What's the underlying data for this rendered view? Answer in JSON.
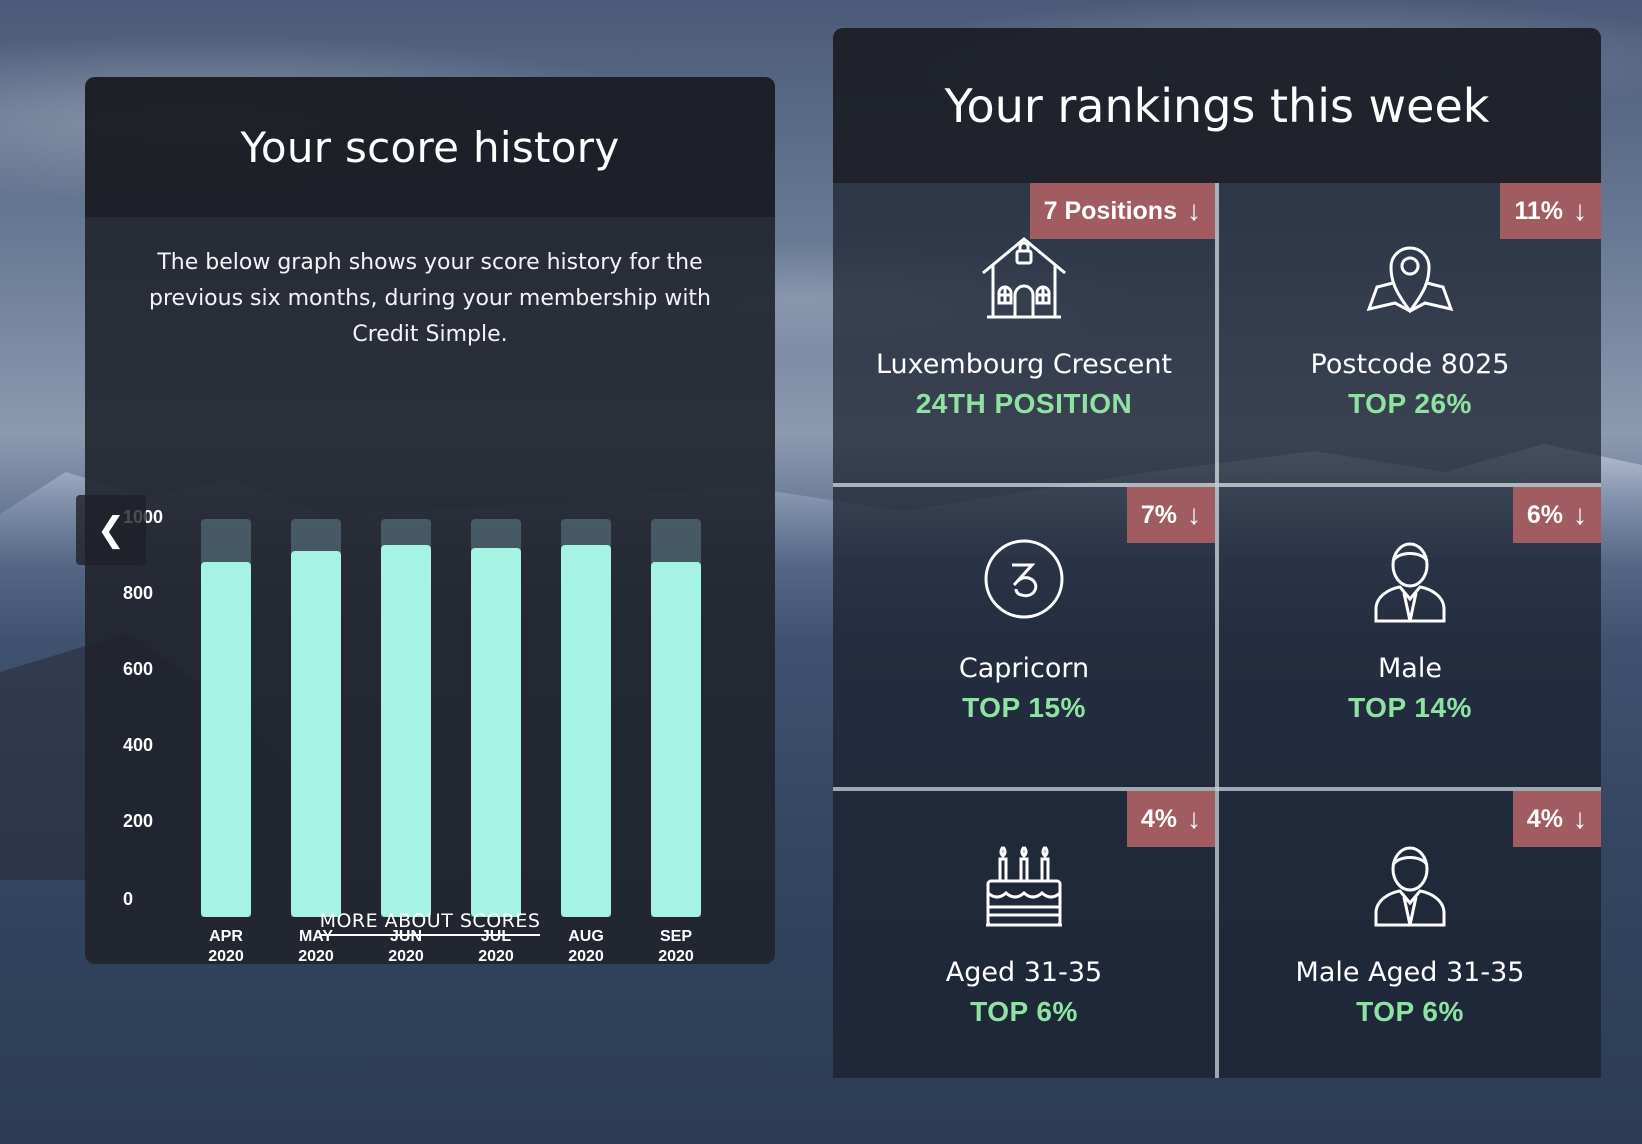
{
  "score_history": {
    "title": "Your score history",
    "description": "The below graph shows your score history for the previous six months, during your membership with Credit Simple.",
    "more_link": "MORE ABOUT SCORES",
    "prev_label": "❮"
  },
  "chart_data": {
    "type": "bar",
    "categories": [
      "APR 2020",
      "MAY 2020",
      "JUN 2020",
      "JUL 2020",
      "AUG 2020",
      "SEP 2020"
    ],
    "month_labels": [
      "APR",
      "MAY",
      "JUN",
      "JUL",
      "AUG",
      "SEP"
    ],
    "year_labels": [
      "2020",
      "2020",
      "2020",
      "2020",
      "2020",
      "2020"
    ],
    "values": [
      900,
      928,
      945,
      937,
      945,
      900
    ],
    "ylim": [
      0,
      1000
    ],
    "yticks": [
      "0",
      "200",
      "400",
      "600",
      "800",
      "1000"
    ],
    "title": "",
    "xlabel": "",
    "ylabel": "",
    "grid": false,
    "colors": {
      "bar": "#a4f3e3",
      "track": "#7fb0b9"
    }
  },
  "rankings": {
    "title": "Your rankings this week",
    "cells": [
      {
        "badge": "7 Positions",
        "arrow": "↓",
        "icon": "house-icon",
        "label": "Luxembourg Crescent",
        "rank": "24TH POSITION"
      },
      {
        "badge": "11%",
        "arrow": "↓",
        "icon": "map-pin-icon",
        "label": "Postcode 8025",
        "rank": "TOP 26%"
      },
      {
        "badge": "7%",
        "arrow": "↓",
        "icon": "capricorn-icon",
        "label": "Capricorn",
        "rank": "TOP 15%"
      },
      {
        "badge": "6%",
        "arrow": "↓",
        "icon": "male-user-icon",
        "label": "Male",
        "rank": "TOP 14%"
      },
      {
        "badge": "4%",
        "arrow": "↓",
        "icon": "birthday-cake-icon",
        "label": "Aged 31-35",
        "rank": "TOP 6%"
      },
      {
        "badge": "4%",
        "arrow": "↓",
        "icon": "male-user-icon",
        "label": "Male Aged 31-35",
        "rank": "TOP 6%"
      }
    ],
    "colors": {
      "badge": "#a15c62",
      "rank_text": "#8fe3a2"
    }
  }
}
